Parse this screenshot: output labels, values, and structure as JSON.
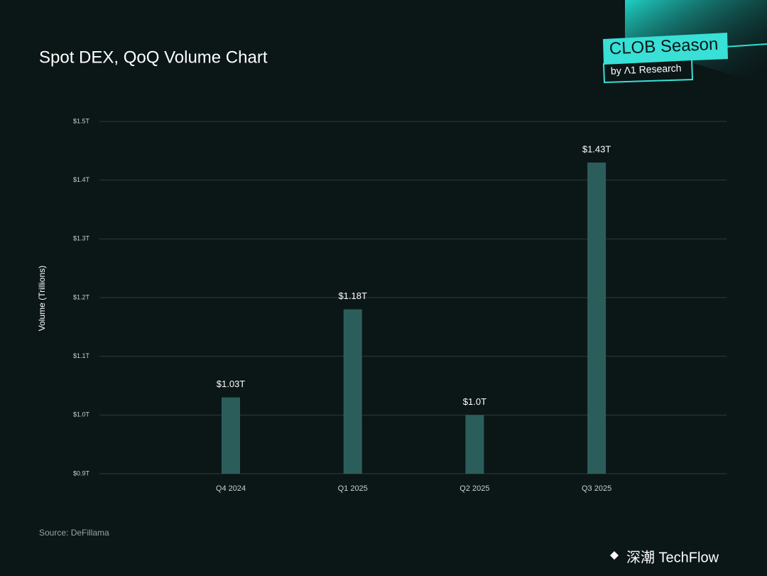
{
  "chart_data": {
    "type": "bar",
    "title": "Spot DEX, QoQ Volume Chart",
    "badge_title": "CLOB Season",
    "badge_subtitle": "by Λ1 Research",
    "y_label": "Volume (Trillions)",
    "source": "Source: DeFillama",
    "watermark": "深潮 TechFlow",
    "categories": [
      "Q4 2024",
      "Q1 2025",
      "Q2 2025",
      "Q3 2025"
    ],
    "values": [
      1.03,
      1.18,
      1.0,
      1.43
    ],
    "value_labels": [
      "$1.03T",
      "$1.18T",
      "$1.0T",
      "$1.43T"
    ],
    "color": "#2b5e5b",
    "ylim": [
      0.9,
      1.5
    ],
    "yticks": [
      {
        "value": 0.9,
        "label": "$0.9T"
      },
      {
        "value": 1.0,
        "label": "$1.0T"
      },
      {
        "value": 1.1,
        "label": "$1.1T"
      },
      {
        "value": 1.2,
        "label": "$1.2T"
      },
      {
        "value": 1.3,
        "label": "$1.3T"
      },
      {
        "value": 1.4,
        "label": "$1.4T"
      },
      {
        "value": 1.5,
        "label": "$1.5T"
      }
    ],
    "grid": true
  }
}
